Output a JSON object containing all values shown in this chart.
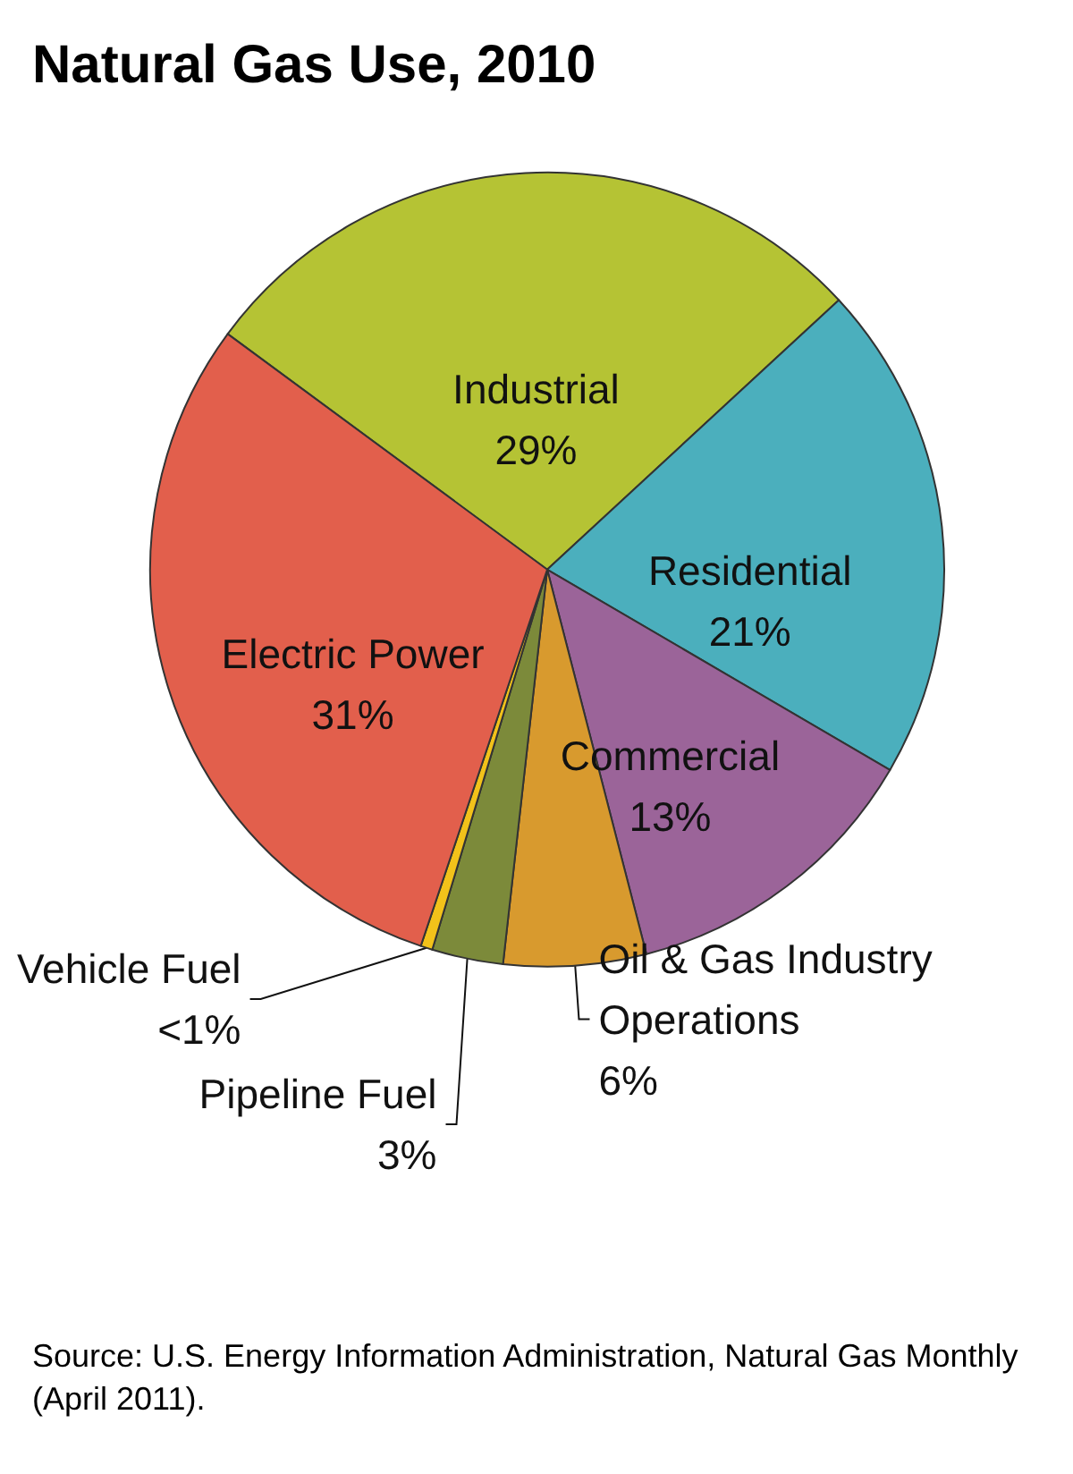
{
  "chart_data": {
    "type": "pie",
    "title": "Natural Gas Use, 2010",
    "categories": [
      "Industrial",
      "Residential",
      "Commercial",
      "Oil & Gas Industry Operations",
      "Pipeline Fuel",
      "Vehicle Fuel",
      "Electric Power"
    ],
    "values": [
      29,
      21,
      13,
      6,
      3,
      0.5,
      31
    ],
    "value_labels": [
      "29%",
      "21%",
      "13%",
      "6%",
      "3%",
      "<1%",
      "31%"
    ],
    "colors": [
      "#b5c334",
      "#4bafbd",
      "#9b6499",
      "#d89a2e",
      "#7c8a3a",
      "#f2c21a",
      "#e25f4c"
    ],
    "legend": false,
    "annotations": [
      "Source: U.S. Energy Information Administration, Natural Gas Monthly (April 2011)."
    ]
  }
}
